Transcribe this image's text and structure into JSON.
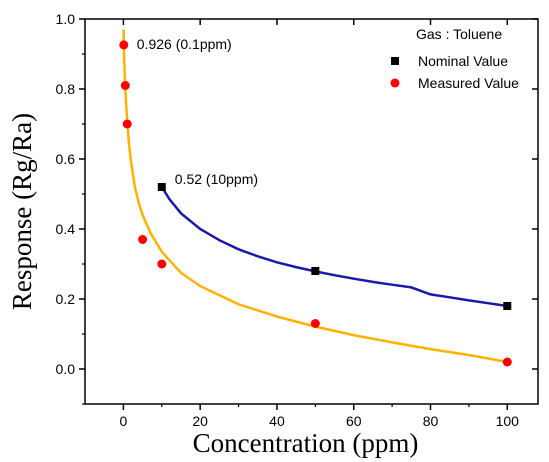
{
  "chart_data": {
    "type": "scatter",
    "xlabel": "Concentration (ppm)",
    "ylabel": "Response (Rg/Ra)",
    "xlim": [
      -10,
      108
    ],
    "ylim": [
      -0.1,
      1.0
    ],
    "xticks": [
      "0",
      "20",
      "40",
      "60",
      "80",
      "100"
    ],
    "yticks": [
      "0.0",
      "0.2",
      "0.4",
      "0.6",
      "0.8",
      "1.0"
    ],
    "legend": {
      "title": "Gas : Toluene",
      "placement": "top-right",
      "entries": [
        {
          "label": "Nominal Value",
          "marker": "square",
          "color": "#000000"
        },
        {
          "label": "Measured Value",
          "marker": "circle",
          "color": "#ff0000"
        }
      ]
    },
    "series": [
      {
        "name": "Nominal Value",
        "marker": "square",
        "color": "#000000",
        "points": [
          [
            10,
            0.52
          ],
          [
            50,
            0.28
          ],
          [
            100,
            0.18
          ]
        ],
        "fit_color": "#1a1aa6",
        "fit_x": [
          10,
          12,
          15,
          20,
          25,
          30,
          35,
          40,
          45,
          50,
          55,
          60,
          65,
          70,
          75,
          80,
          85,
          90,
          95,
          100
        ],
        "fit_y": [
          0.52,
          0.485,
          0.445,
          0.4,
          0.368,
          0.342,
          0.322,
          0.305,
          0.291,
          0.279,
          0.268,
          0.258,
          0.249,
          0.241,
          0.233,
          0.213,
          0.205,
          0.196,
          0.188,
          0.18
        ]
      },
      {
        "name": "Measured Value",
        "marker": "circle",
        "color": "#ff0000",
        "points": [
          [
            0.1,
            0.926
          ],
          [
            0.5,
            0.81
          ],
          [
            1,
            0.7
          ],
          [
            5,
            0.37
          ],
          [
            10,
            0.3
          ],
          [
            50,
            0.13
          ],
          [
            100,
            0.02
          ]
        ],
        "fit_color": "#ffb300",
        "fit_x": [
          0.05,
          0.1,
          0.2,
          0.4,
          0.7,
          1,
          1.5,
          2,
          3,
          4,
          5,
          7,
          10,
          15,
          20,
          30,
          40,
          50,
          60,
          70,
          80,
          90,
          100
        ],
        "fit_y": [
          0.97,
          0.93,
          0.88,
          0.83,
          0.76,
          0.71,
          0.64,
          0.59,
          0.52,
          0.475,
          0.44,
          0.39,
          0.335,
          0.275,
          0.237,
          0.185,
          0.15,
          0.121,
          0.097,
          0.076,
          0.057,
          0.04,
          0.02
        ]
      }
    ],
    "annotations": [
      {
        "text": "0.926 (0.1ppm)",
        "x": 0.1,
        "y": 0.926
      },
      {
        "text": "0.52 (10ppm)",
        "x": 10,
        "y": 0.52
      }
    ]
  }
}
